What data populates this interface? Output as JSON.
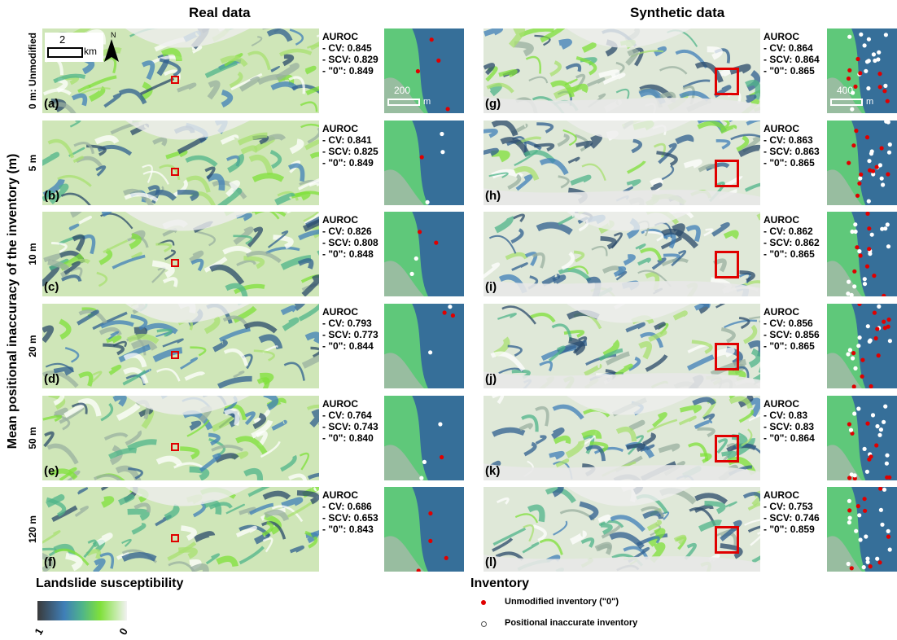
{
  "titles": {
    "real": "Real data",
    "synthetic": "Synthetic data"
  },
  "y_axis_label": "Mean positional inaccuracy of the inventory (m)",
  "rows": [
    {
      "label": "0 m: Unmodified",
      "real": {
        "letter": "(a)",
        "cv": "- CV: 0.845",
        "scv": "- SCV: 0.829",
        "zero": "- \"0\": 0.849"
      },
      "synth": {
        "letter": "(g)",
        "cv": "- CV: 0.864",
        "scv": "- SCV: 0.864",
        "zero": "- \"0\": 0.865"
      }
    },
    {
      "label": "5 m",
      "real": {
        "letter": "(b)",
        "cv": "- CV: 0.841",
        "scv": "- SCV: 0.825",
        "zero": "- \"0\": 0.849"
      },
      "synth": {
        "letter": "(h)",
        "cv": "- CV: 0.863",
        "scv": "- SCV: 0.863",
        "zero": "- \"0\": 0.865"
      }
    },
    {
      "label": "10 m",
      "real": {
        "letter": "(c)",
        "cv": "- CV: 0.826",
        "scv": "- SCV: 0.808",
        "zero": "- \"0\": 0.848"
      },
      "synth": {
        "letter": "(i)",
        "cv": "- CV: 0.862",
        "scv": "- SCV: 0.862",
        "zero": "- \"0\": 0.865"
      }
    },
    {
      "label": "20 m",
      "real": {
        "letter": "(d)",
        "cv": "- CV: 0.793",
        "scv": "- SCV: 0.773",
        "zero": "- \"0\": 0.844"
      },
      "synth": {
        "letter": "(j)",
        "cv": "- CV: 0.856",
        "scv": "- SCV: 0.856",
        "zero": "- \"0\": 0.865"
      }
    },
    {
      "label": "50 m",
      "real": {
        "letter": "(e)",
        "cv": "- CV: 0.764",
        "scv": "- SCV: 0.743",
        "zero": "- \"0\": 0.840"
      },
      "synth": {
        "letter": "(k)",
        "cv": "- CV: 0.83",
        "scv": "- SCV: 0.83",
        "zero": "- \"0\": 0.864"
      }
    },
    {
      "label": "120 m",
      "real": {
        "letter": "(f)",
        "cv": "- CV: 0.686",
        "scv": "- SCV: 0.653",
        "zero": "- \"0\": 0.843"
      },
      "synth": {
        "letter": "(l)",
        "cv": "- CV: 0.753",
        "scv": "- SCV: 0.746",
        "zero": "- \"0\": 0.859"
      }
    }
  ],
  "auroc_heading": "AUROC",
  "scalebar_main": {
    "value": "2",
    "unit": "km"
  },
  "north_label": "N",
  "inset_scale_real": {
    "value": "200",
    "unit": "m"
  },
  "inset_scale_synth": {
    "value": "400",
    "unit": "m"
  },
  "legend": {
    "susceptibility_title": "Landslide susceptibility",
    "ramp_high": "1",
    "ramp_low": "0",
    "ramp_colors": [
      "#3a3a3a",
      "#3f7fb8",
      "#4fb48a",
      "#7fe03a",
      "#f2f2f2"
    ],
    "inventory_title": "Inventory",
    "unmodified_label": "Unmodified inventory (\"0\")",
    "inaccurate_label": "Positional inaccurate inventory",
    "unmodified_color": "#e00000",
    "inaccurate_color": "#ffffff"
  }
}
